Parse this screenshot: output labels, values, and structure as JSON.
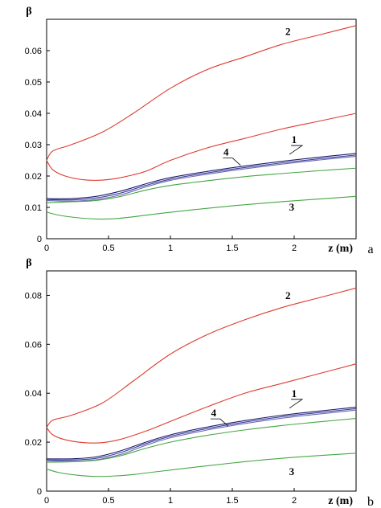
{
  "chart_data": [
    {
      "type": "line",
      "panel_label": "a",
      "ylabel": "β",
      "xlabel": "z (m)",
      "xlim": [
        0,
        2.5
      ],
      "ylim": [
        0,
        0.07
      ],
      "xticks": [
        "0",
        "0.5",
        "1",
        "1.5",
        "2"
      ],
      "xtick_values": [
        0,
        0.5,
        1,
        1.5,
        2
      ],
      "yticks": [
        "0",
        "0.01",
        "0.02",
        "0.03",
        "0.04",
        "0.05",
        "0.06"
      ],
      "ytick_values": [
        0,
        0.01,
        0.02,
        0.03,
        0.04,
        0.05,
        0.06
      ],
      "grid": false,
      "curve_labels": [
        {
          "text": "2",
          "x": 1.95,
          "y": 0.065
        },
        {
          "text": "1",
          "x": 2.0,
          "y": 0.0305
        },
        {
          "text": "4",
          "x": 1.45,
          "y": 0.0265
        },
        {
          "text": "3",
          "x": 1.98,
          "y": 0.009
        }
      ],
      "series": [
        {
          "color": "#dd3b2f",
          "x": [
            0,
            0.05,
            0.2,
            0.45,
            0.7,
            1.0,
            1.3,
            1.6,
            1.9,
            2.2,
            2.5
          ],
          "y": [
            0.025,
            0.028,
            0.03,
            0.034,
            0.04,
            0.048,
            0.054,
            0.058,
            0.062,
            0.065,
            0.068
          ]
        },
        {
          "color": "#dd3b2f",
          "x": [
            0,
            0.05,
            0.15,
            0.3,
            0.45,
            0.6,
            0.8,
            1.0,
            1.3,
            1.6,
            1.9,
            2.2,
            2.5
          ],
          "y": [
            0.025,
            0.022,
            0.02,
            0.0188,
            0.0187,
            0.0195,
            0.0215,
            0.025,
            0.029,
            0.032,
            0.035,
            0.0375,
            0.04
          ]
        },
        {
          "color": "#1a1a6e",
          "x": [
            0,
            0.2,
            0.4,
            0.6,
            0.8,
            1.0,
            1.3,
            1.6,
            1.9,
            2.2,
            2.5
          ],
          "y": [
            0.0128,
            0.0128,
            0.0135,
            0.0152,
            0.0175,
            0.0195,
            0.0215,
            0.0232,
            0.0247,
            0.026,
            0.0272
          ]
        },
        {
          "color": "#3e3ea0",
          "x": [
            0,
            0.2,
            0.4,
            0.6,
            0.8,
            1.0,
            1.3,
            1.6,
            1.9,
            2.2,
            2.5
          ],
          "y": [
            0.0125,
            0.0124,
            0.013,
            0.0146,
            0.017,
            0.019,
            0.021,
            0.0227,
            0.0242,
            0.0255,
            0.0267
          ]
        },
        {
          "color": "#6a6ab0",
          "x": [
            0,
            0.2,
            0.4,
            0.6,
            0.8,
            1.0,
            1.3,
            1.6,
            1.9,
            2.2,
            2.5
          ],
          "y": [
            0.0122,
            0.012,
            0.0125,
            0.014,
            0.0165,
            0.0186,
            0.0206,
            0.0223,
            0.0238,
            0.0251,
            0.0263
          ]
        },
        {
          "color": "#44a644",
          "x": [
            0,
            0.2,
            0.4,
            0.6,
            0.8,
            1.0,
            1.3,
            1.6,
            1.9,
            2.2,
            2.5
          ],
          "y": [
            0.0115,
            0.0118,
            0.0122,
            0.0135,
            0.0155,
            0.017,
            0.0185,
            0.0198,
            0.0208,
            0.0217,
            0.0225
          ]
        },
        {
          "color": "#44a644",
          "x": [
            0,
            0.1,
            0.25,
            0.4,
            0.55,
            0.7,
            0.9,
            1.2,
            1.5,
            1.8,
            2.1,
            2.5
          ],
          "y": [
            0.0085,
            0.0075,
            0.0067,
            0.0063,
            0.0064,
            0.007,
            0.008,
            0.0093,
            0.0105,
            0.0115,
            0.0124,
            0.0135
          ]
        }
      ]
    },
    {
      "type": "line",
      "panel_label": "b",
      "ylabel": "β",
      "xlabel": "z (m)",
      "xlim": [
        0,
        2.5
      ],
      "ylim": [
        0,
        0.09
      ],
      "xticks": [
        "0",
        "0.5",
        "1",
        "1.5",
        "2"
      ],
      "xtick_values": [
        0,
        0.5,
        1,
        1.5,
        2
      ],
      "yticks": [
        "0",
        "0.02",
        "0.04",
        "0.06",
        "0.08"
      ],
      "ytick_values": [
        0,
        0.02,
        0.04,
        0.06,
        0.08
      ],
      "grid": false,
      "curve_labels": [
        {
          "text": "2",
          "x": 1.95,
          "y": 0.0785
        },
        {
          "text": "1",
          "x": 2.0,
          "y": 0.0385
        },
        {
          "text": "4",
          "x": 1.35,
          "y": 0.0305
        },
        {
          "text": "3",
          "x": 1.98,
          "y": 0.0065
        }
      ],
      "series": [
        {
          "color": "#dd3b2f",
          "x": [
            0,
            0.05,
            0.2,
            0.45,
            0.7,
            1.0,
            1.3,
            1.6,
            1.9,
            2.2,
            2.5
          ],
          "y": [
            0.026,
            0.029,
            0.031,
            0.036,
            0.045,
            0.056,
            0.064,
            0.07,
            0.075,
            0.079,
            0.083
          ]
        },
        {
          "color": "#dd3b2f",
          "x": [
            0,
            0.05,
            0.15,
            0.3,
            0.45,
            0.6,
            0.8,
            1.0,
            1.3,
            1.6,
            1.9,
            2.2,
            2.5
          ],
          "y": [
            0.026,
            0.023,
            0.021,
            0.0198,
            0.0198,
            0.0212,
            0.0245,
            0.0285,
            0.0345,
            0.04,
            0.044,
            0.048,
            0.052
          ]
        },
        {
          "color": "#1a1a6e",
          "x": [
            0,
            0.2,
            0.4,
            0.6,
            0.8,
            1.0,
            1.3,
            1.6,
            1.9,
            2.2,
            2.5
          ],
          "y": [
            0.0132,
            0.0132,
            0.014,
            0.0165,
            0.02,
            0.023,
            0.0262,
            0.0288,
            0.031,
            0.0327,
            0.0343
          ]
        },
        {
          "color": "#3e3ea0",
          "x": [
            0,
            0.2,
            0.4,
            0.6,
            0.8,
            1.0,
            1.3,
            1.6,
            1.9,
            2.2,
            2.5
          ],
          "y": [
            0.0128,
            0.0127,
            0.0134,
            0.0158,
            0.0194,
            0.0224,
            0.0256,
            0.0282,
            0.0304,
            0.0321,
            0.0337
          ]
        },
        {
          "color": "#6a6ab0",
          "x": [
            0,
            0.2,
            0.4,
            0.6,
            0.8,
            1.0,
            1.3,
            1.6,
            1.9,
            2.2,
            2.5
          ],
          "y": [
            0.0124,
            0.0122,
            0.0128,
            0.015,
            0.0187,
            0.0218,
            0.025,
            0.0276,
            0.0298,
            0.0315,
            0.0331
          ]
        },
        {
          "color": "#44a644",
          "x": [
            0,
            0.2,
            0.4,
            0.6,
            0.8,
            1.0,
            1.3,
            1.6,
            1.9,
            2.2,
            2.5
          ],
          "y": [
            0.0118,
            0.012,
            0.0126,
            0.0145,
            0.0175,
            0.02,
            0.0228,
            0.025,
            0.0268,
            0.0283,
            0.0297
          ]
        },
        {
          "color": "#44a644",
          "x": [
            0,
            0.1,
            0.25,
            0.4,
            0.55,
            0.7,
            0.9,
            1.2,
            1.5,
            1.8,
            2.1,
            2.5
          ],
          "y": [
            0.009,
            0.0076,
            0.0065,
            0.006,
            0.0062,
            0.0068,
            0.008,
            0.0098,
            0.0115,
            0.013,
            0.0142,
            0.0155
          ]
        }
      ]
    }
  ]
}
